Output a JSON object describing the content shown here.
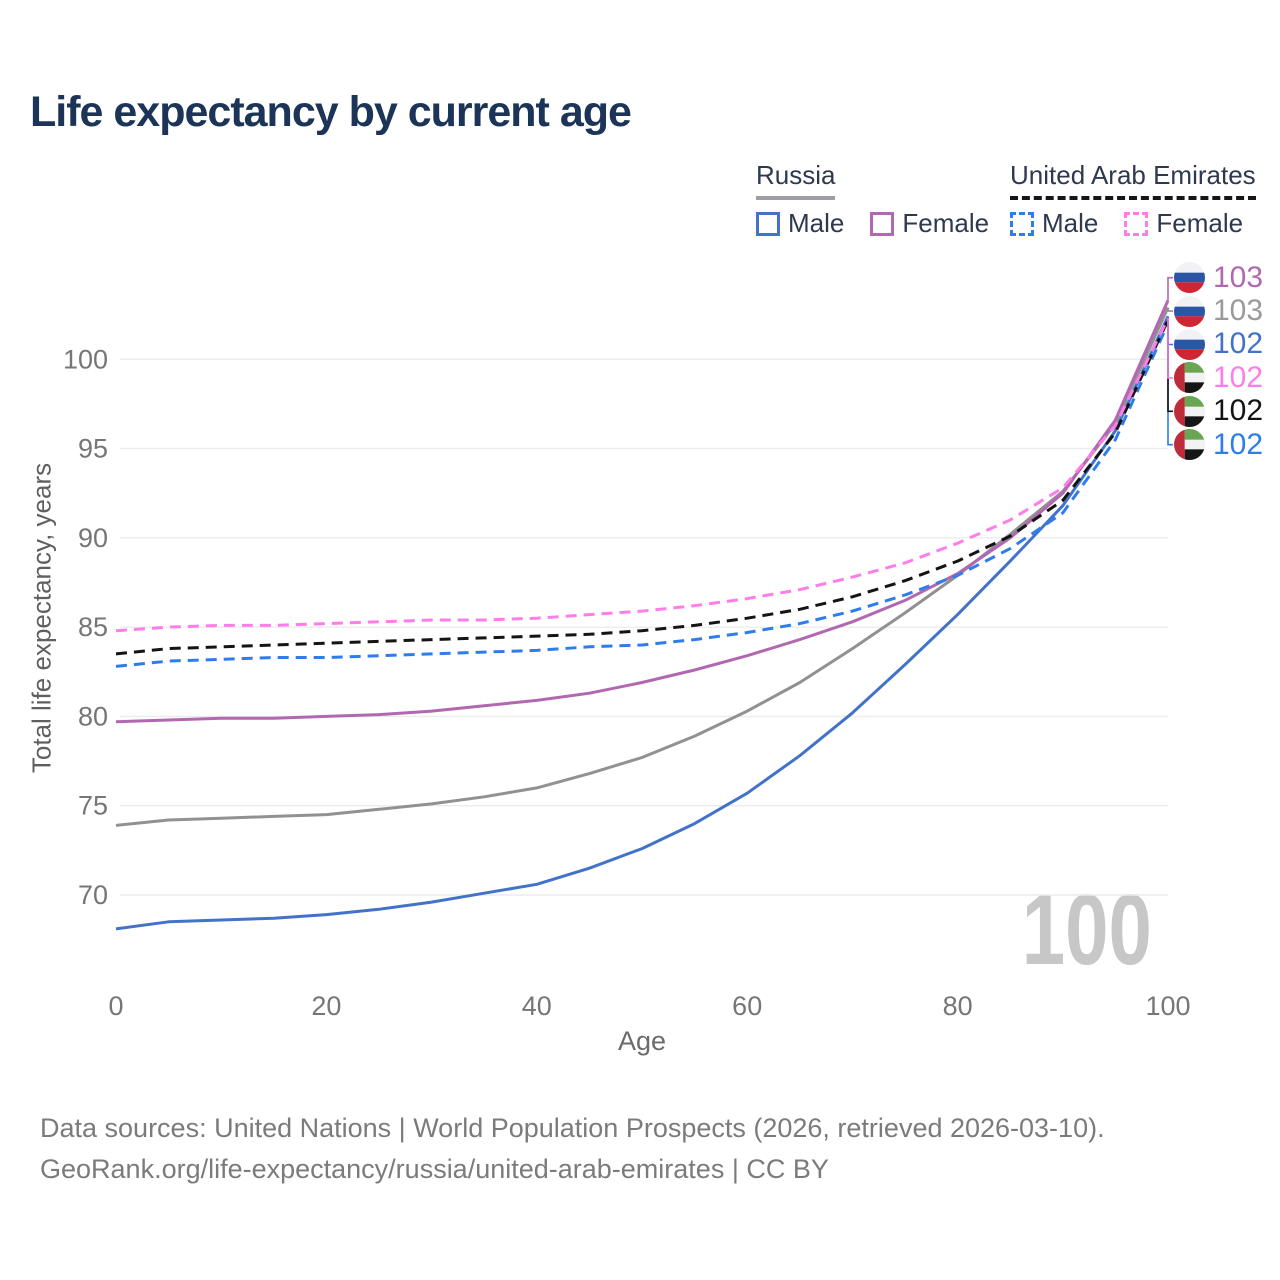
{
  "title": "Life expectancy by current age",
  "watermark": "100",
  "legend": {
    "groups": [
      {
        "label": "Russia",
        "line_style": "solid",
        "underline_color": "#9aa0a6",
        "items": [
          {
            "label": "Male",
            "color": "#4273C8"
          },
          {
            "label": "Female",
            "color": "#B168B1"
          }
        ]
      },
      {
        "label": "United Arab Emirates",
        "line_style": "dashed",
        "underline_color": "#161616",
        "items": [
          {
            "label": "Male",
            "color": "#2E7DEC"
          },
          {
            "label": "Female",
            "color": "#FF7DE9"
          }
        ]
      }
    ]
  },
  "chart_data": {
    "type": "line",
    "title": "Life expectancy by current age",
    "xlabel": "Age",
    "ylabel": "Total life expectancy, years",
    "xlim": [
      0,
      100
    ],
    "ylim": [
      66,
      104
    ],
    "xticks": [
      0,
      20,
      40,
      60,
      80,
      100
    ],
    "yticks": [
      70,
      75,
      80,
      85,
      90,
      95,
      100
    ],
    "grid": "horizontal",
    "legend_position": "top-right",
    "x": [
      0,
      5,
      10,
      15,
      20,
      25,
      30,
      35,
      40,
      45,
      50,
      55,
      60,
      65,
      70,
      75,
      80,
      85,
      90,
      95,
      100
    ],
    "series": [
      {
        "name": "Russia Male",
        "country": "Russia",
        "sex": "Male",
        "color": "#4273C8",
        "dash": "solid",
        "end_label": "102",
        "label_row": 2,
        "flag": "ru",
        "values": [
          68.1,
          68.5,
          68.6,
          68.7,
          68.9,
          69.2,
          69.6,
          70.1,
          70.6,
          71.5,
          72.6,
          74.0,
          75.7,
          77.8,
          80.2,
          82.9,
          85.7,
          88.7,
          91.8,
          96.0,
          102.4
        ]
      },
      {
        "name": "Russia (both sexes)",
        "country": "Russia",
        "sex": "Both",
        "color": "#919191",
        "dash": "solid",
        "end_label": "103",
        "label_row": 1,
        "flag": "ru",
        "values": [
          73.9,
          74.2,
          74.3,
          74.4,
          74.5,
          74.8,
          75.1,
          75.5,
          76.0,
          76.8,
          77.7,
          78.9,
          80.3,
          81.9,
          83.8,
          85.8,
          87.9,
          90.2,
          92.6,
          96.4,
          102.9
        ]
      },
      {
        "name": "Russia Female",
        "country": "Russia",
        "sex": "Female",
        "color": "#B168B1",
        "dash": "solid",
        "end_label": "103",
        "label_row": 0,
        "flag": "ru",
        "values": [
          79.7,
          79.8,
          79.9,
          79.9,
          80.0,
          80.1,
          80.3,
          80.6,
          80.9,
          81.3,
          81.9,
          82.6,
          83.4,
          84.3,
          85.3,
          86.5,
          88.0,
          90.0,
          92.5,
          96.6,
          103.3
        ]
      },
      {
        "name": "United Arab Emirates Male",
        "country": "United Arab Emirates",
        "sex": "Male",
        "color": "#2E7DEC",
        "dash": "dashed",
        "end_label": "102",
        "label_row": 5,
        "flag": "ae",
        "values": [
          82.8,
          83.1,
          83.2,
          83.3,
          83.3,
          83.4,
          83.5,
          83.6,
          83.7,
          83.9,
          84.0,
          84.3,
          84.7,
          85.2,
          85.9,
          86.8,
          87.9,
          89.4,
          91.4,
          95.5,
          102.0
        ]
      },
      {
        "name": "United Arab Emirates (both sexes)",
        "country": "United Arab Emirates",
        "sex": "Both",
        "color": "#141414",
        "dash": "dashed",
        "end_label": "102",
        "label_row": 4,
        "flag": "ae",
        "values": [
          83.5,
          83.8,
          83.9,
          84.0,
          84.1,
          84.2,
          84.3,
          84.4,
          84.5,
          84.6,
          84.8,
          85.1,
          85.5,
          86.0,
          86.7,
          87.6,
          88.7,
          90.1,
          92.1,
          95.9,
          102.2
        ]
      },
      {
        "name": "United Arab Emirates Female",
        "country": "United Arab Emirates",
        "sex": "Female",
        "color": "#FF7DE9",
        "dash": "dashed",
        "end_label": "102",
        "label_row": 3,
        "flag": "ae",
        "values": [
          84.8,
          85.0,
          85.1,
          85.1,
          85.2,
          85.3,
          85.4,
          85.4,
          85.5,
          85.7,
          85.9,
          86.2,
          86.6,
          87.1,
          87.8,
          88.6,
          89.7,
          91.0,
          92.8,
          96.3,
          102.3
        ]
      }
    ],
    "end_label_colors": [
      "#B168B1",
      "#9a9a9a",
      "#4273C8",
      "#FF7DE9",
      "#141414",
      "#2E7DEC"
    ]
  },
  "footer": {
    "line1": "Data sources: United Nations | World Population Prospects (2026, retrieved 2026-03-10).",
    "line2": "GeoRank.org/life-expectancy/russia/united-arab-emirates | CC BY"
  }
}
